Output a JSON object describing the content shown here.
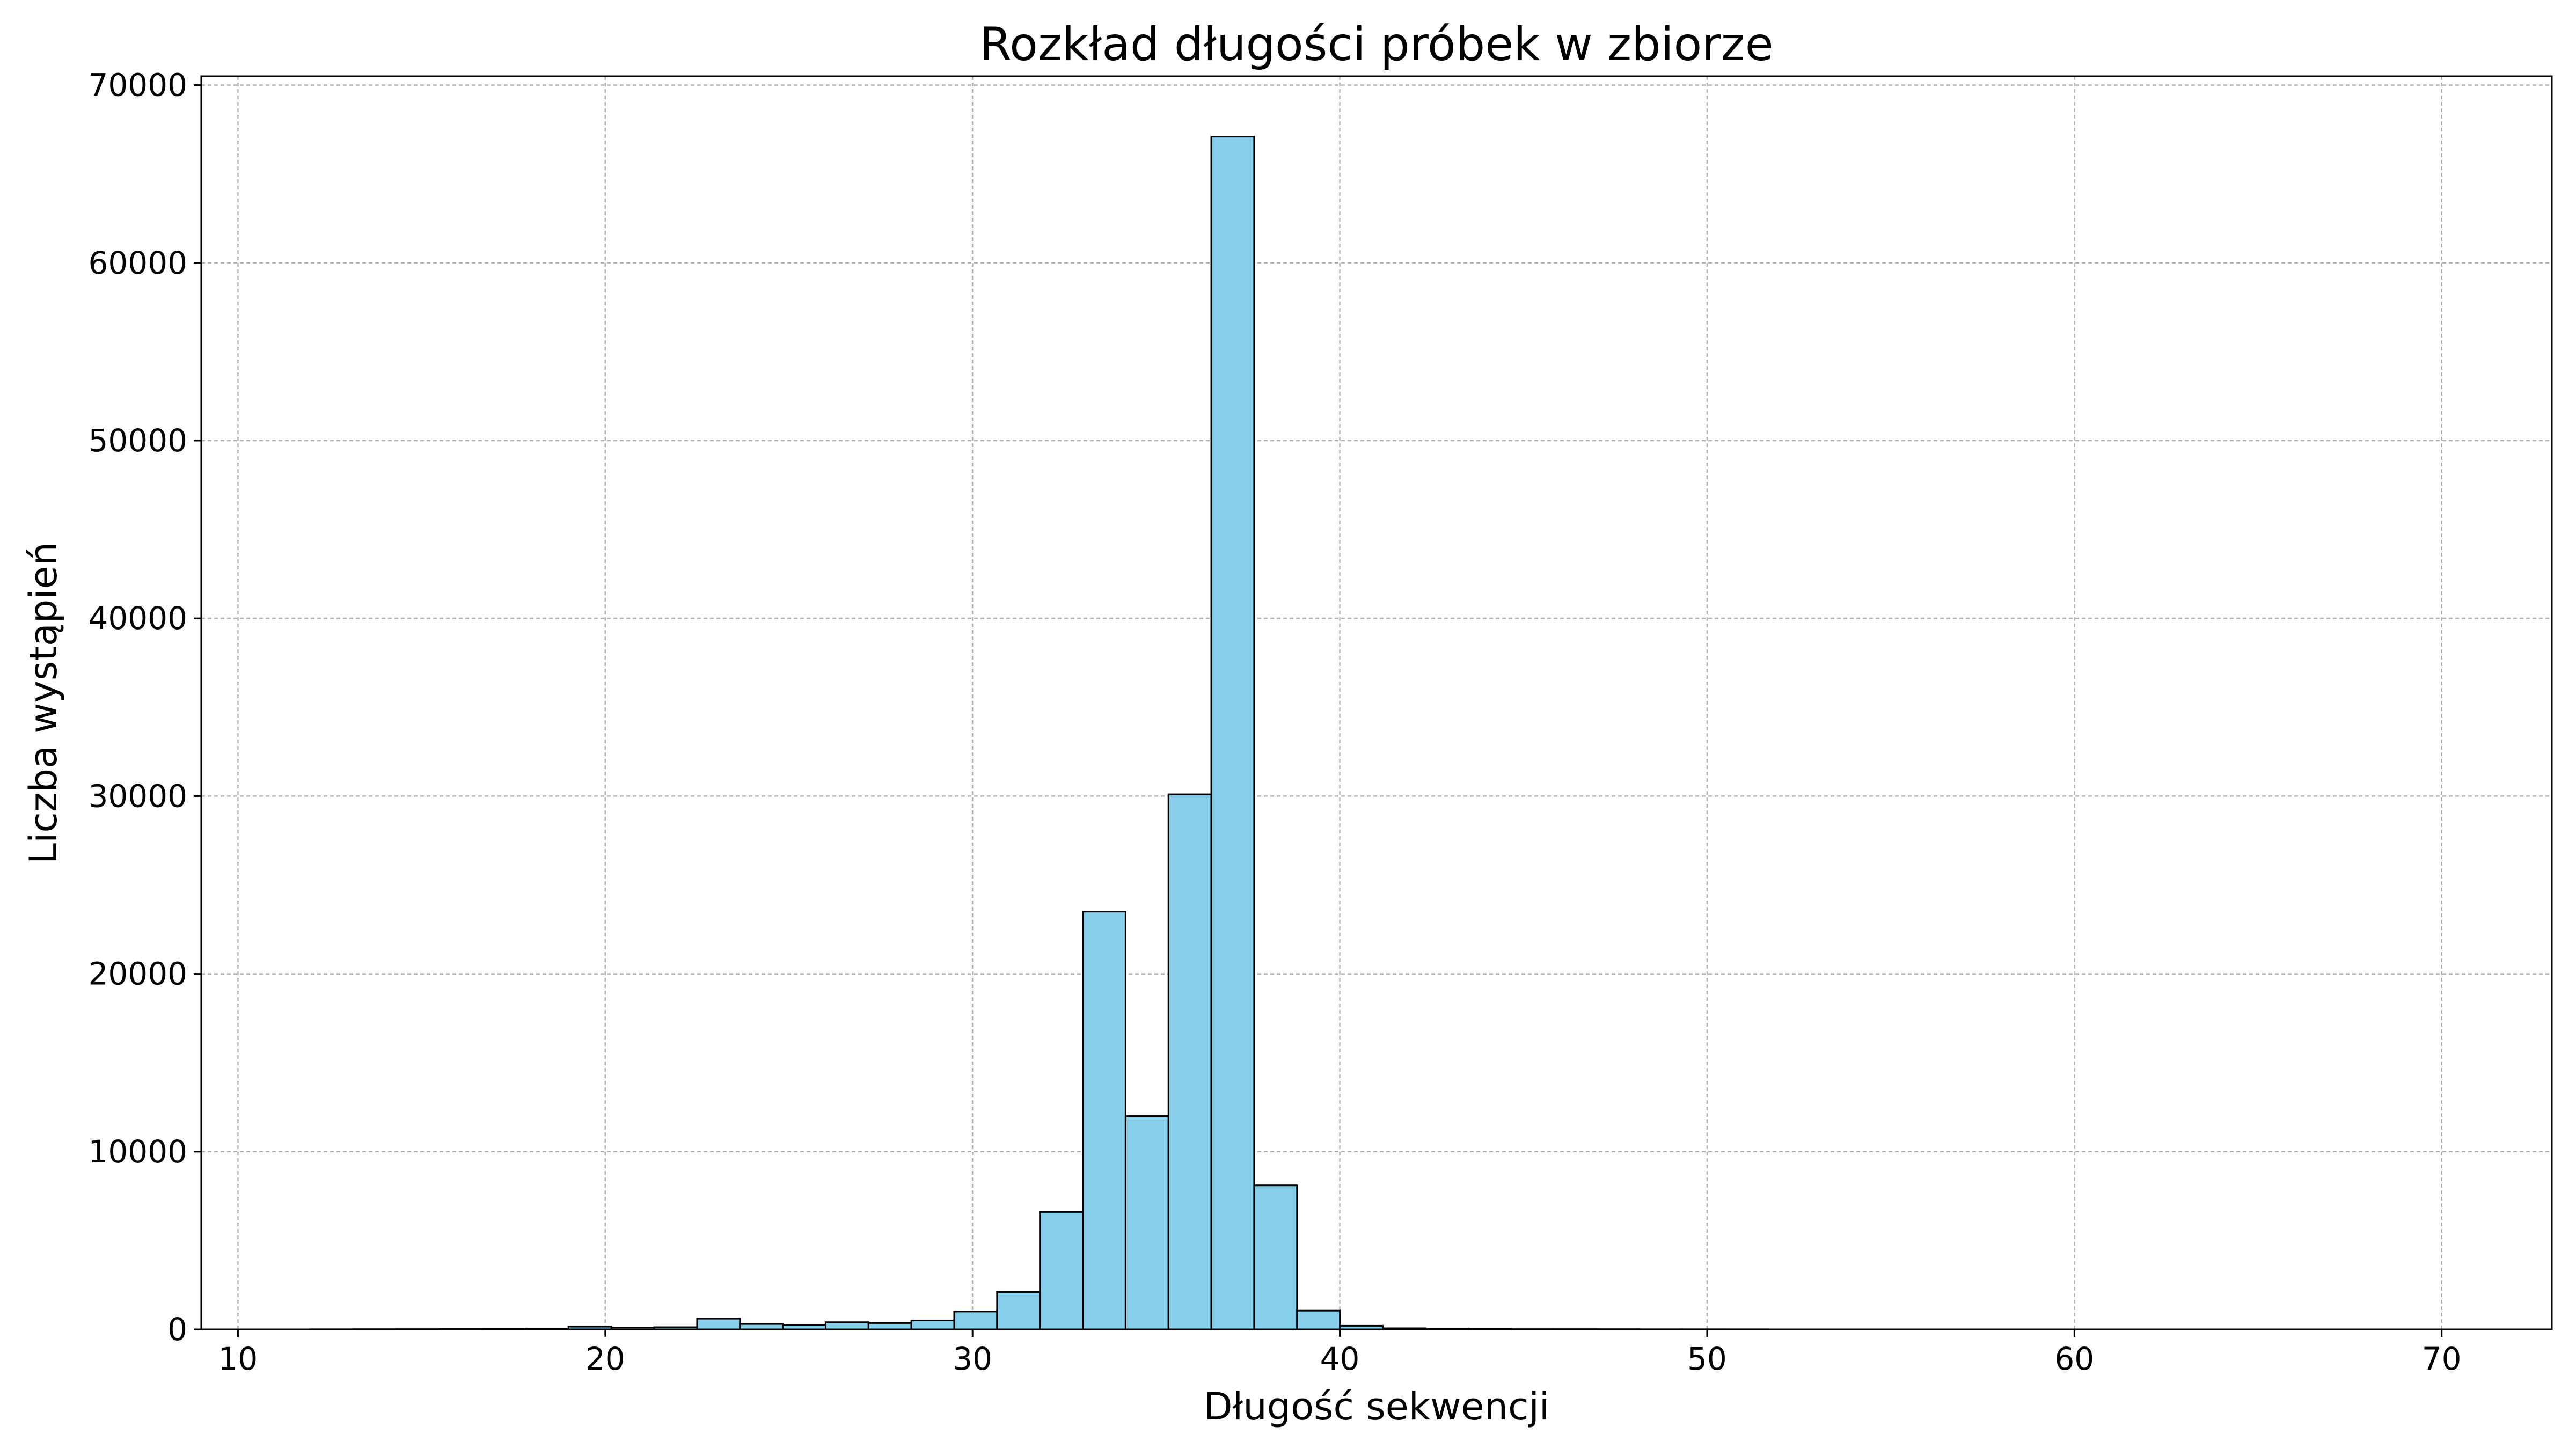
{
  "chart_data": {
    "type": "bar",
    "subtype": "histogram",
    "title": "Rozkład długości próbek w zbiorze",
    "xlabel": "Długość sekwencji",
    "ylabel": "Liczba wystąpień",
    "xlim": [
      9,
      73
    ],
    "ylim": [
      0,
      70500
    ],
    "xticks": [
      10,
      20,
      30,
      40,
      50,
      60,
      70
    ],
    "yticks": [
      0,
      10000,
      20000,
      30000,
      40000,
      50000,
      60000,
      70000
    ],
    "grid": true,
    "bar_color": "#87ceeb",
    "edge_color": "#000000",
    "bin_start": 12,
    "bin_width": 1.1667,
    "values": [
      5,
      8,
      10,
      15,
      20,
      30,
      150,
      100,
      120,
      600,
      300,
      250,
      400,
      350,
      500,
      1000,
      2100,
      6600,
      23500,
      12000,
      30100,
      67100,
      8100,
      1050,
      200,
      60,
      30,
      20,
      10,
      10,
      8,
      5,
      5,
      3,
      0,
      0,
      0,
      0,
      0,
      0,
      0,
      0,
      0,
      0,
      0,
      0,
      0,
      0,
      0,
      0
    ]
  }
}
